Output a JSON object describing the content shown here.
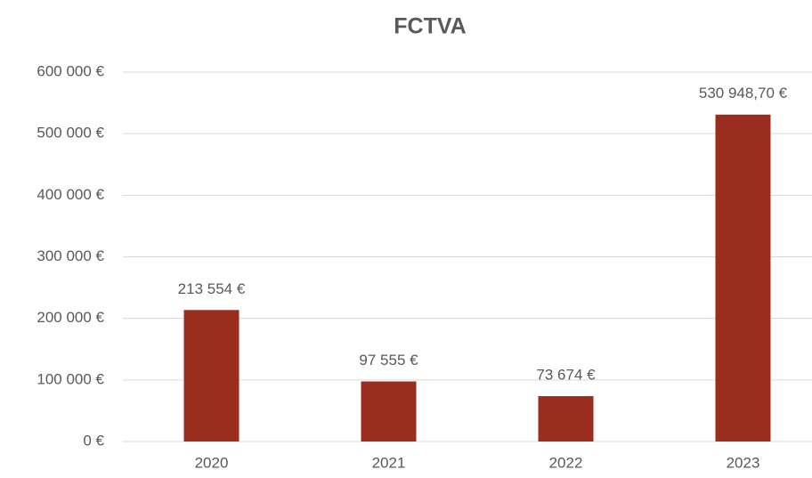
{
  "chart_data": {
    "type": "bar",
    "title": "FCTVA",
    "categories": [
      "2020",
      "2021",
      "2022",
      "2023"
    ],
    "values": [
      213554,
      97555,
      73674,
      530948.7
    ],
    "value_labels": [
      "213 554 €",
      "97 555 €",
      "73 674 €",
      "530 948,70 €"
    ],
    "color": "#9b2d1f",
    "ylim": [
      0,
      600000
    ],
    "yticks": [
      {
        "value": 0,
        "label": "0 €"
      },
      {
        "value": 100000,
        "label": "100 000 €"
      },
      {
        "value": 200000,
        "label": "200 000 €"
      },
      {
        "value": 300000,
        "label": "300 000 €"
      },
      {
        "value": 400000,
        "label": "400 000 €"
      },
      {
        "value": 500000,
        "label": "500 000 €"
      },
      {
        "value": 600000,
        "label": "600 000 €"
      }
    ],
    "grid": true
  }
}
